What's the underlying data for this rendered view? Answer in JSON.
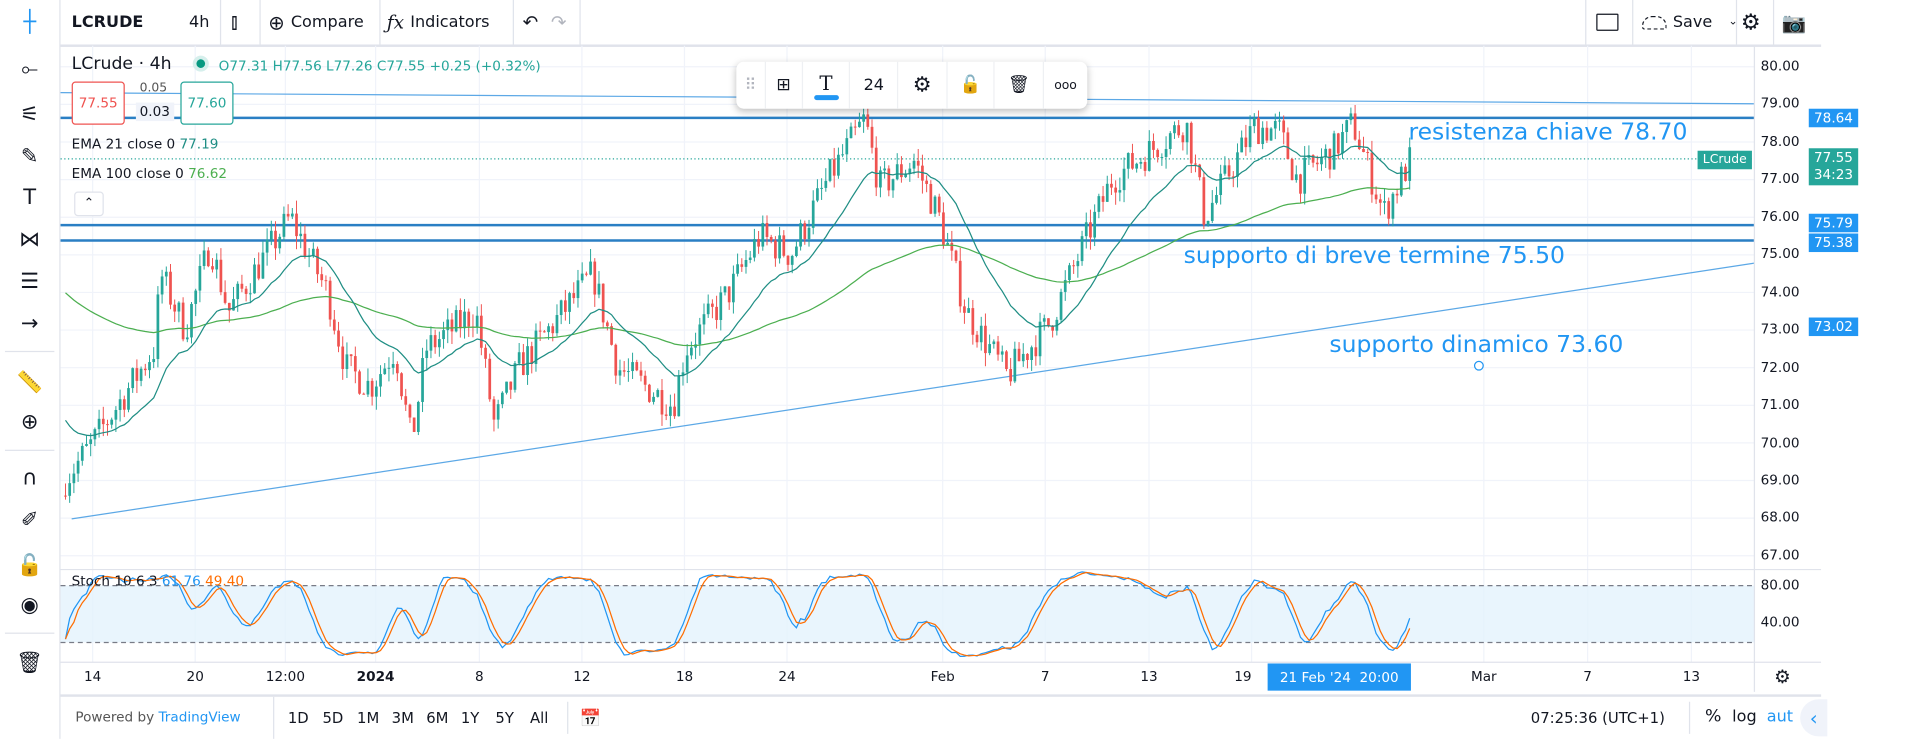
{
  "topbar": {
    "symbol": "LCRUDE",
    "interval": "4h",
    "compare_label": "Compare",
    "indicators_label": "Indicators",
    "save_label": "Save"
  },
  "legend": {
    "title": "LCrude · 4h",
    "ohlc": "O77.31 H77.56 L77.26 C77.55 +0.25 (+0.32%)",
    "sell_price": "77.55",
    "spread_top": "0.05",
    "spread": "0.03",
    "buy_price": "77.60",
    "ema21_label": "EMA 21 close 0",
    "ema21_value": "77.19",
    "ema100_label": "EMA 100 close 0",
    "ema100_value": "76.62",
    "stoch_label": "Stoch 10 6 3",
    "stoch_k": "61.76",
    "stoch_d": "49.40"
  },
  "drawing_toolbar": {
    "font_size": "24"
  },
  "price_axis": {
    "ticks": [
      "80.00",
      "79.00",
      "78.00",
      "77.00",
      "76.00",
      "75.00",
      "74.00",
      "73.00",
      "72.00",
      "71.00",
      "70.00",
      "69.00",
      "68.00",
      "67.00"
    ],
    "level_tags": [
      "78.64",
      "75.79",
      "75.38",
      "73.02"
    ],
    "last_symbol": "LCrude",
    "last_price": "77.55",
    "countdown": "34:23",
    "stoch_ticks": [
      "80.00",
      "40.00"
    ]
  },
  "time_axis": {
    "ticks": [
      "14",
      "20",
      "12:00",
      "2024",
      "8",
      "12",
      "18",
      "24",
      "Feb",
      "7",
      "13",
      "19",
      "Mar",
      "7",
      "13"
    ],
    "crosshair_label": "21 Feb '24  20:00"
  },
  "annotations": {
    "resistance": "resistenza chiave 78.70",
    "short_support": "supporto di breve termine 75.50",
    "dynamic_support": "supporto dinamico 73.60"
  },
  "bottombar": {
    "powered_by": "Powered by",
    "brand": "TradingView",
    "ranges": [
      "1D",
      "5D",
      "1M",
      "3M",
      "6M",
      "1Y",
      "5Y",
      "All"
    ],
    "clock": "07:25:36 (UTC+1)",
    "percent": "%",
    "log": "log",
    "auto": "aut"
  },
  "colors": {
    "up": "#26a69a",
    "down": "#ef5350",
    "ema21": "#1f8e84",
    "ema100": "#4caf50",
    "drawing": "#2196f3",
    "stoch_k": "#2196f3",
    "stoch_d": "#ff6d00"
  },
  "chart_data": {
    "type": "candlestick",
    "symbol": "LCrude",
    "interval": "4h",
    "ylim": [
      67,
      80
    ],
    "price_path_approx": [
      [
        "14 Dec",
        69.0
      ],
      [
        "15 Dec",
        70.0
      ],
      [
        "18 Dec",
        72.5
      ],
      [
        "19 Dec",
        74.5
      ],
      [
        "20 Dec",
        73.0
      ],
      [
        "21 Dec",
        75.3
      ],
      [
        "22 Dec",
        73.5
      ],
      [
        "26 Dec",
        76.0
      ],
      [
        "27 Dec",
        74.0
      ],
      [
        "28 Dec",
        72.0
      ],
      [
        "29 Dec",
        71.5
      ],
      [
        "2 Jan",
        72.5
      ],
      [
        "3 Jan",
        70.0
      ],
      [
        "4 Jan",
        72.5
      ],
      [
        "8 Jan",
        73.5
      ],
      [
        "9 Jan",
        70.5
      ],
      [
        "10 Jan",
        72.0
      ],
      [
        "12 Jan",
        74.5
      ],
      [
        "15 Jan",
        72.0
      ],
      [
        "17 Jan",
        71.0
      ],
      [
        "18 Jan",
        72.5
      ],
      [
        "22 Jan",
        74.0
      ],
      [
        "23 Jan",
        75.5
      ],
      [
        "24 Jan",
        75.0
      ],
      [
        "25 Jan",
        77.0
      ],
      [
        "29 Jan",
        78.6
      ],
      [
        "30 Jan",
        76.8
      ],
      [
        "31 Jan",
        77.5
      ],
      [
        "1 Feb",
        76.0
      ],
      [
        "2 Feb",
        73.5
      ],
      [
        "5 Feb",
        71.8
      ],
      [
        "7 Feb",
        73.2
      ],
      [
        "8 Feb",
        75.5
      ],
      [
        "9 Feb",
        77.0
      ],
      [
        "12 Feb",
        78.5
      ],
      [
        "13 Feb",
        76.0
      ],
      [
        "15 Feb",
        78.4
      ],
      [
        "16 Feb",
        78.3
      ],
      [
        "19 Feb",
        77.0
      ],
      [
        "20 Feb",
        77.8
      ],
      [
        "21 Feb",
        78.5
      ],
      [
        "22 Feb",
        76.1
      ],
      [
        "23 Feb",
        77.55
      ]
    ],
    "horizontal_levels": [
      78.64,
      75.79,
      75.38
    ],
    "trendline_level_at_cursor": 73.02,
    "stoch_bands": [
      80,
      20
    ]
  }
}
